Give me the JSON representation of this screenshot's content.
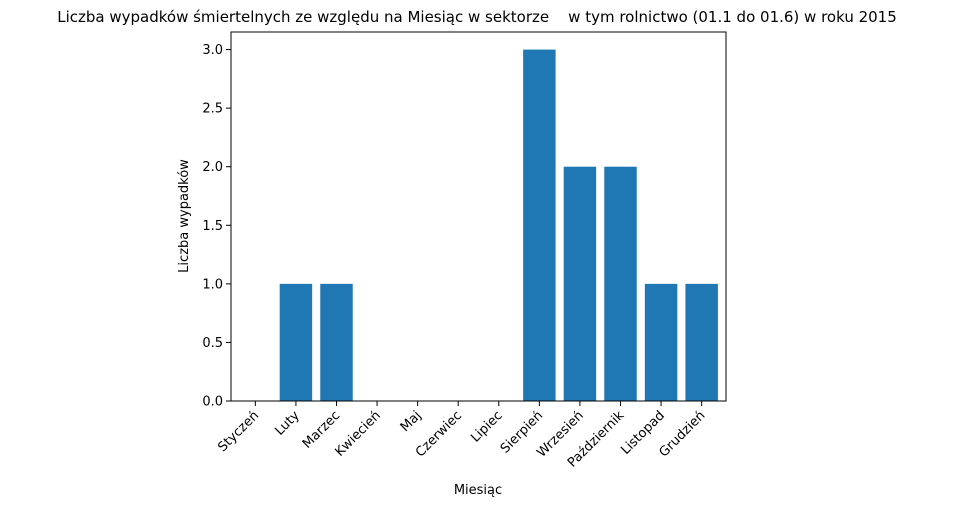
{
  "chart_data": {
    "type": "bar",
    "title": "Liczba wypadków śmiertelnych ze względu na Miesiąc w sektorze    w tym rolnictwo (01.1 do 01.6) w roku 2015",
    "xlabel": "Miesiąc",
    "ylabel": "Liczba wypadków",
    "categories": [
      "Styczeń",
      "Luty",
      "Marzec",
      "Kwiecień",
      "Maj",
      "Czerwiec",
      "Lipiec",
      "Sierpień",
      "Wrzesień",
      "Październik",
      "Listopad",
      "Grudzień"
    ],
    "values": [
      0,
      1,
      1,
      0,
      0,
      0,
      0,
      3,
      2,
      2,
      1,
      1
    ],
    "ylim": [
      0,
      3.15
    ],
    "yticks": [
      "0.0",
      "0.5",
      "1.0",
      "1.5",
      "2.0",
      "2.5",
      "3.0"
    ],
    "grid": false,
    "bar_color": "#1f77b4"
  }
}
